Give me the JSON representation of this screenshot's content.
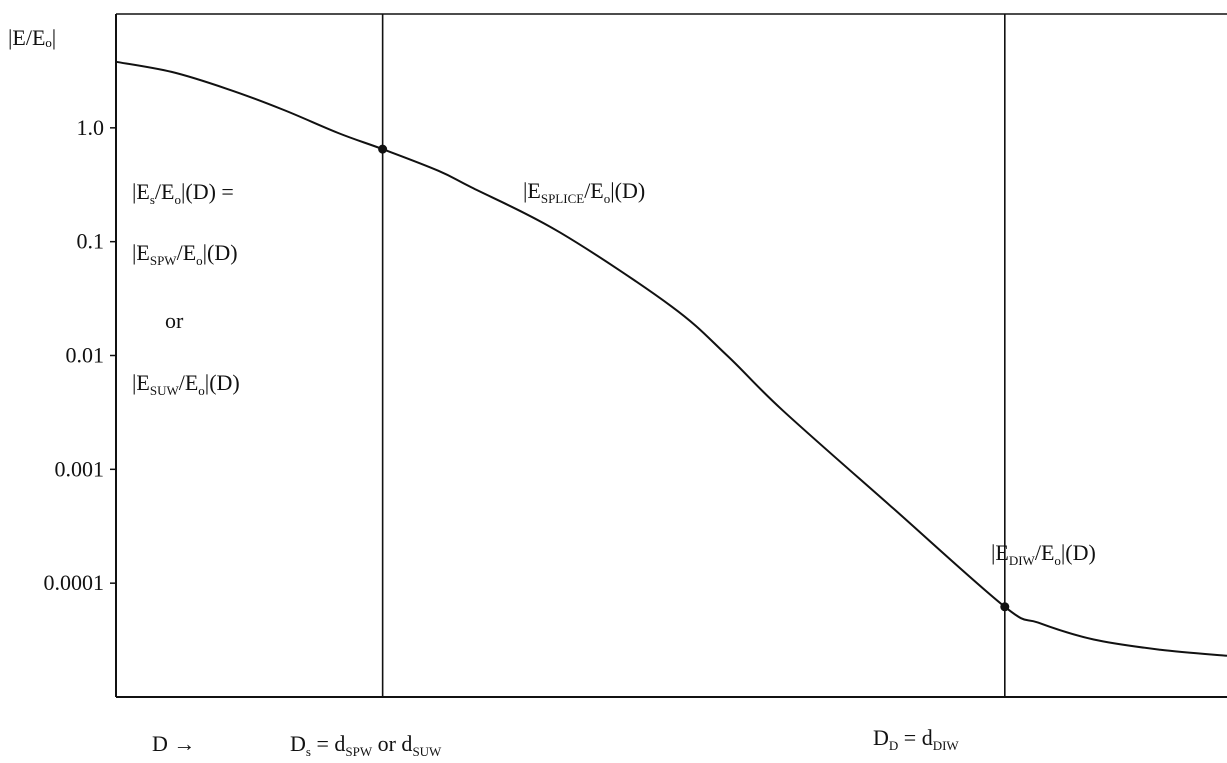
{
  "chart_data": {
    "type": "line",
    "title": "",
    "ylabel": "|E/Eₒ|",
    "yscale": "log",
    "ylim": [
      1e-05,
      10
    ],
    "yticks": [
      {
        "value": 1.0,
        "label": "1.0"
      },
      {
        "value": 0.1,
        "label": "0.1"
      },
      {
        "value": 0.01,
        "label": "0.01"
      },
      {
        "value": 0.001,
        "label": "0.001"
      },
      {
        "value": 0.0001,
        "label": "0.0001"
      }
    ],
    "xlim": [
      0,
      1
    ],
    "grid": false,
    "x_axis_label": {
      "text": "D →"
    },
    "series": [
      {
        "x": [
          0.0,
          0.05,
          0.1,
          0.15,
          0.2,
          0.24,
          0.29,
          0.32,
          0.4,
          0.5,
          0.55,
          0.6,
          0.7,
          0.8,
          0.83,
          0.88,
          0.94,
          1.0
        ],
        "y": [
          3.8,
          3.1,
          2.2,
          1.45,
          0.9,
          0.65,
          0.42,
          0.3,
          0.12,
          0.027,
          0.01,
          0.0033,
          0.00045,
          6.2e-05,
          4.5e-05,
          3.2e-05,
          2.6e-05,
          2.3e-05
        ]
      }
    ],
    "points": [
      {
        "x": 0.24,
        "y": 0.65
      },
      {
        "x": 0.8,
        "y": 6.2e-05
      }
    ],
    "vlines": [
      {
        "x": 0.24,
        "label": {
          "main": "D",
          "main_sub": "s",
          "mid": " = d",
          "mid_sub": "SPW",
          "tail": " or d",
          "tail_sub": "SUW"
        }
      },
      {
        "x": 0.8,
        "label": {
          "main": "D",
          "main_sub": "D",
          "mid": " = d",
          "mid_sub": "DIW",
          "tail": "",
          "tail_sub": ""
        }
      }
    ],
    "annotations": [
      {
        "pre": "|E",
        "sub": "s",
        "post": "/E",
        "sub2": "o",
        "tail": "|(D) ="
      },
      {
        "pre": "|E",
        "sub": "SPW",
        "post": "/E",
        "sub2": "o",
        "tail": "|(D)"
      },
      {
        "pre": "or",
        "sub": "",
        "post": "",
        "sub2": "",
        "tail": ""
      },
      {
        "pre": "|E",
        "sub": "SUW",
        "post": "/E",
        "sub2": "o",
        "tail": "|(D)"
      },
      {
        "pre": "|E",
        "sub": "SPLICE",
        "post": "/E",
        "sub2": "o",
        "tail": "|(D)"
      },
      {
        "pre": "|E",
        "sub": "DIW",
        "post": "/E",
        "sub2": "o",
        "tail": "|(D)"
      }
    ]
  }
}
